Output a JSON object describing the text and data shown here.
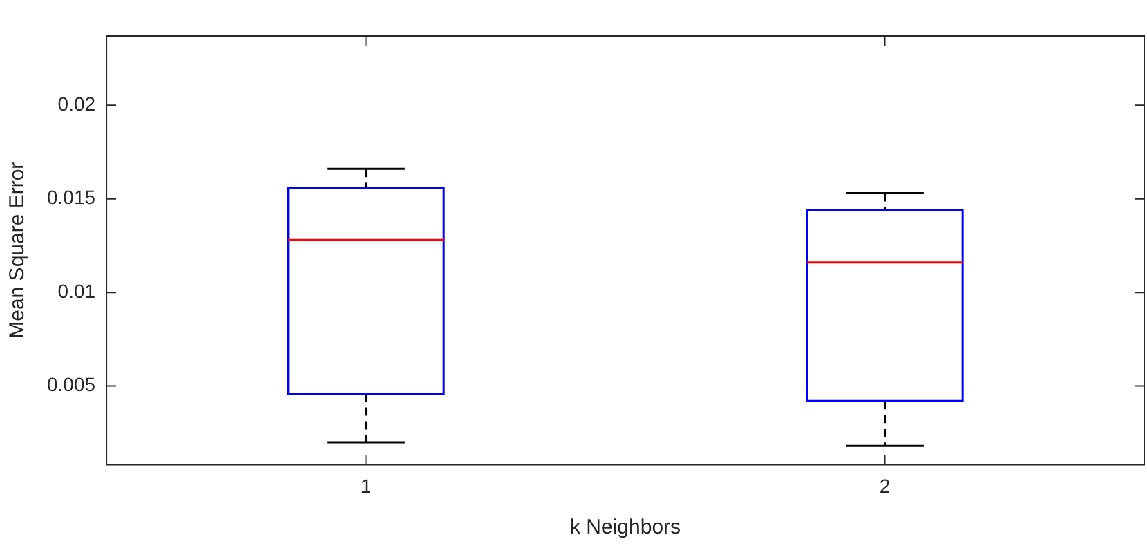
{
  "chart_data": {
    "type": "box",
    "xlabel": "k Neighbors",
    "ylabel": "Mean Square Error",
    "categories": [
      "1",
      "2"
    ],
    "series": [
      {
        "color": "#0000ff",
        "boxes": [
          {
            "low": 0.002,
            "q1": 0.0046,
            "median": 0.0128,
            "q3": 0.0156,
            "high": 0.0166
          },
          {
            "low": 0.0018,
            "q1": 0.0042,
            "median": 0.0116,
            "q3": 0.0144,
            "high": 0.0153
          }
        ]
      }
    ],
    "ylim": [
      0.0008,
      0.0237
    ],
    "yticks": [
      0.005,
      0.01,
      0.015,
      0.02
    ],
    "grid": false,
    "legend": false
  }
}
